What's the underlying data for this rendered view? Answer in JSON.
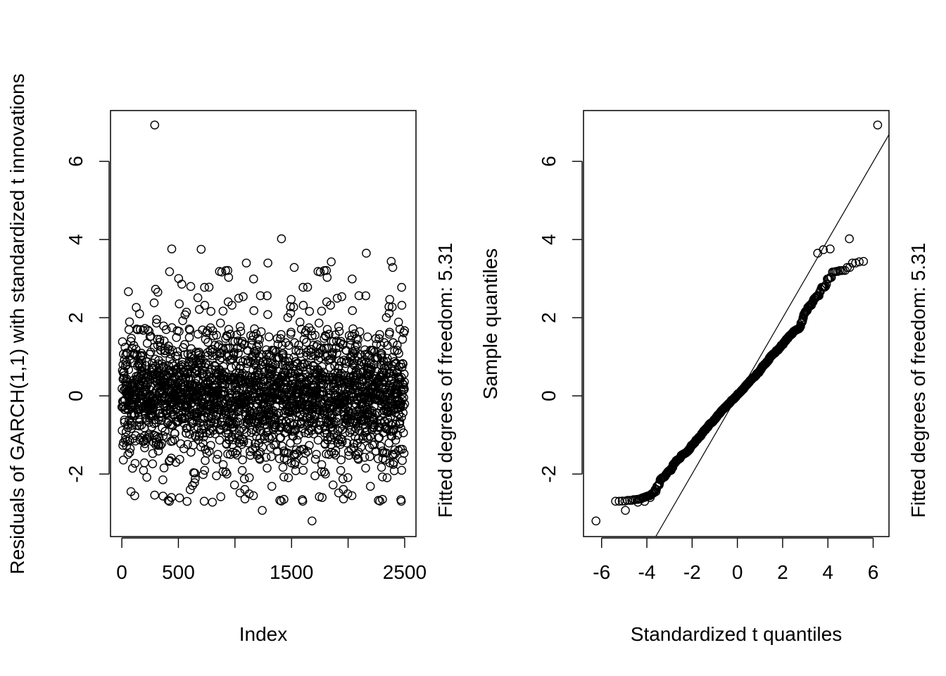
{
  "chart_data": [
    {
      "type": "scatter",
      "title": "",
      "xlabel": "Index",
      "ylabel": "Residuals of GARCH(1,1) with standardized t innovations",
      "right_label": "Fitted degrees of freedom: 5.31",
      "xlim": [
        -100,
        2600
      ],
      "ylim": [
        -3.6,
        7.3
      ],
      "x_ticks": [
        0,
        500,
        1000,
        1500,
        2000,
        2500
      ],
      "x_tick_labels": [
        "0",
        "500",
        "",
        "1500",
        "",
        "2500"
      ],
      "y_ticks": [
        -2,
        0,
        2,
        4,
        6
      ],
      "y_tick_labels": [
        "-2",
        "0",
        "2",
        "4",
        "6"
      ],
      "n_points": 2500,
      "notable_points": [
        {
          "x": 290,
          "y": 6.93
        },
        {
          "x": 1680,
          "y": -3.2
        },
        {
          "x": 1410,
          "y": 4.02
        },
        {
          "x": 440,
          "y": 3.76
        },
        {
          "x": 700,
          "y": 3.75
        },
        {
          "x": 1240,
          "y": -2.93
        },
        {
          "x": 80,
          "y": -2.45
        },
        {
          "x": 800,
          "y": -2.72
        },
        {
          "x": 420,
          "y": -2.7
        },
        {
          "x": 1770,
          "y": -2.6
        },
        {
          "x": 2160,
          "y": 3.65
        },
        {
          "x": 2380,
          "y": 3.44
        },
        {
          "x": 1100,
          "y": 3.4
        },
        {
          "x": 1850,
          "y": 3.43
        },
        {
          "x": 1290,
          "y": 3.4
        }
      ],
      "grid": false,
      "marker": "open-circle"
    },
    {
      "type": "scatter",
      "title": "",
      "xlabel": "Standardized t quantiles",
      "ylabel": "Sample quantiles",
      "right_label": "Fitted degrees of freedom: 5.31",
      "xlim": [
        -6.8,
        6.7
      ],
      "ylim": [
        -3.6,
        7.3
      ],
      "x_ticks": [
        -6,
        -4,
        -2,
        0,
        2,
        4,
        6
      ],
      "x_tick_labels": [
        "-6",
        "-4",
        "-2",
        "0",
        "2",
        "4",
        "6"
      ],
      "y_ticks": [
        -2,
        0,
        2,
        4,
        6
      ],
      "y_tick_labels": [
        "-2",
        "0",
        "2",
        "4",
        "6"
      ],
      "reference_line": {
        "slope": 0.998,
        "intercept": 0.0
      },
      "tail_points": [
        {
          "x": -6.25,
          "y": -3.2
        },
        {
          "x": -4.95,
          "y": -2.93
        },
        {
          "x": -4.4,
          "y": -2.72
        },
        {
          "x": -4.1,
          "y": -2.7
        },
        {
          "x": -3.85,
          "y": -2.6
        },
        {
          "x": -3.6,
          "y": -2.45
        },
        {
          "x": 3.55,
          "y": 3.65
        },
        {
          "x": 3.8,
          "y": 3.74
        },
        {
          "x": 4.1,
          "y": 3.76
        },
        {
          "x": 4.95,
          "y": 4.02
        },
        {
          "x": 6.2,
          "y": 6.93
        }
      ],
      "grid": false,
      "marker": "open-circle"
    }
  ]
}
